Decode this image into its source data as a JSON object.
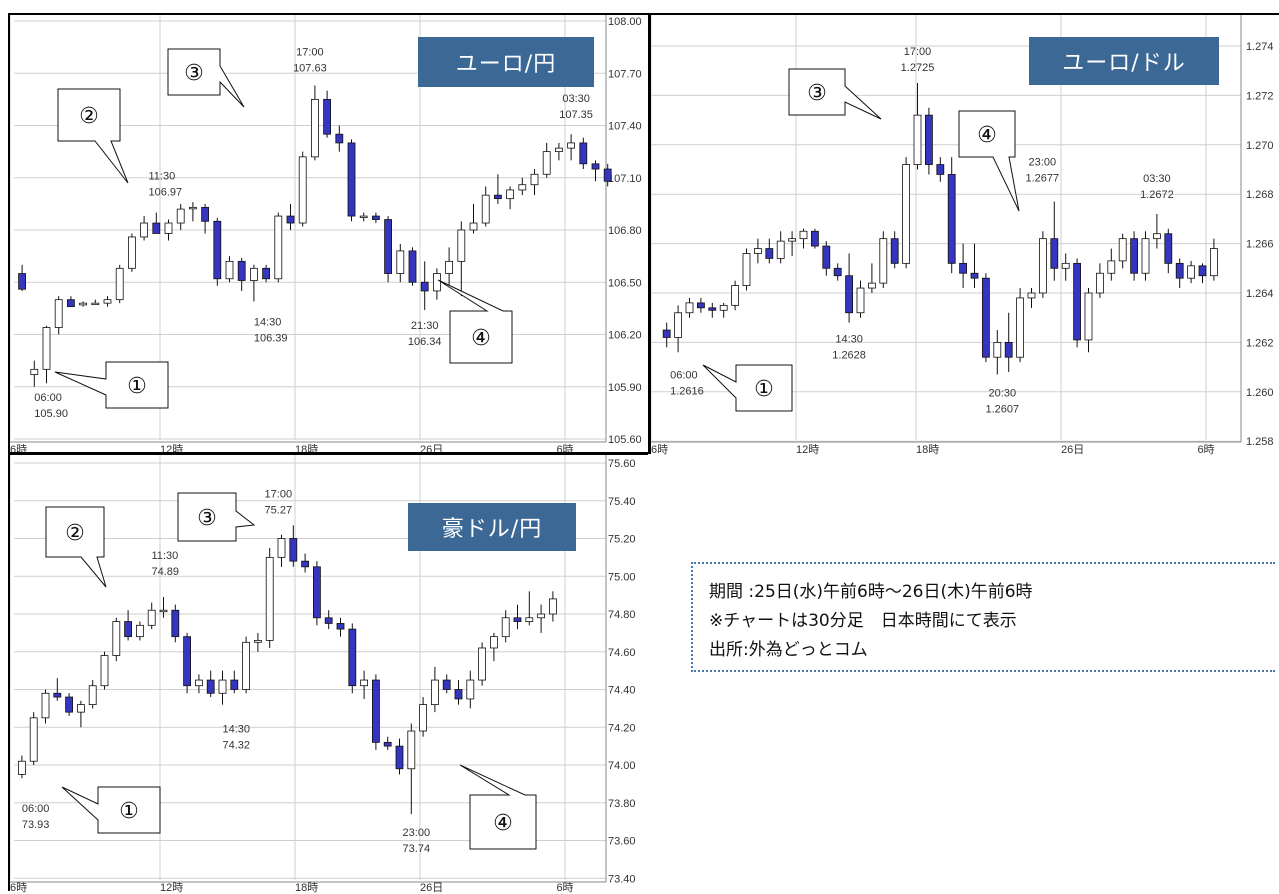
{
  "chart_data": [
    {
      "type": "candlestick",
      "title": "ユーロ/円",
      "y_ticks": [
        "108.00",
        "107.70",
        "107.40",
        "107.10",
        "106.80",
        "106.50",
        "106.20",
        "105.90",
        "105.60"
      ],
      "ylim": [
        105.6,
        108.0
      ],
      "x_ticks": [
        "6時",
        "12時",
        "18時",
        "26日",
        "6時"
      ],
      "grid": true,
      "callouts": [
        "①",
        "②",
        "③",
        "④"
      ],
      "annotations": [
        {
          "time": "06:00",
          "price": "105.90"
        },
        {
          "time": "11:30",
          "price": "106.97"
        },
        {
          "time": "14:30",
          "price": "106.39"
        },
        {
          "time": "17:00",
          "price": "107.63"
        },
        {
          "time": "21:30",
          "price": "106.34"
        },
        {
          "time": "03:30",
          "price": "107.35"
        }
      ],
      "candles": [
        [
          106.55,
          106.6,
          106.45,
          106.46
        ],
        [
          105.97,
          106.05,
          105.9,
          106.0
        ],
        [
          106.0,
          106.25,
          105.92,
          106.24
        ],
        [
          106.24,
          106.42,
          106.2,
          106.4
        ],
        [
          106.4,
          106.42,
          106.36,
          106.36
        ],
        [
          106.37,
          106.39,
          106.36,
          106.38
        ],
        [
          106.38,
          106.4,
          106.37,
          106.38
        ],
        [
          106.38,
          106.42,
          106.36,
          106.4
        ],
        [
          106.4,
          106.6,
          106.38,
          106.58
        ],
        [
          106.58,
          106.78,
          106.56,
          106.76
        ],
        [
          106.76,
          106.88,
          106.74,
          106.84
        ],
        [
          106.84,
          106.9,
          106.8,
          106.78
        ],
        [
          106.78,
          106.86,
          106.74,
          106.84
        ],
        [
          106.84,
          106.95,
          106.8,
          106.92
        ],
        [
          106.93,
          106.96,
          106.85,
          106.93
        ],
        [
          106.93,
          106.95,
          106.78,
          106.85
        ],
        [
          106.85,
          106.87,
          106.48,
          106.52
        ],
        [
          106.52,
          106.65,
          106.5,
          106.62
        ],
        [
          106.62,
          106.64,
          106.45,
          106.51
        ],
        [
          106.51,
          106.6,
          106.39,
          106.58
        ],
        [
          106.58,
          106.6,
          106.5,
          106.52
        ],
        [
          106.52,
          106.9,
          106.5,
          106.88
        ],
        [
          106.88,
          106.95,
          106.8,
          106.84
        ],
        [
          106.84,
          107.25,
          106.82,
          107.22
        ],
        [
          107.22,
          107.63,
          107.2,
          107.55
        ],
        [
          107.55,
          107.6,
          107.33,
          107.35
        ],
        [
          107.35,
          107.4,
          107.25,
          107.3
        ],
        [
          107.3,
          107.32,
          106.85,
          106.88
        ],
        [
          106.88,
          106.9,
          106.85,
          106.88
        ],
        [
          106.88,
          106.9,
          106.84,
          106.86
        ],
        [
          106.86,
          106.88,
          106.5,
          106.55
        ],
        [
          106.55,
          106.72,
          106.5,
          106.68
        ],
        [
          106.68,
          106.7,
          106.48,
          106.5
        ],
        [
          106.5,
          106.62,
          106.34,
          106.45
        ],
        [
          106.45,
          106.58,
          106.4,
          106.55
        ],
        [
          106.55,
          106.7,
          106.48,
          106.62
        ],
        [
          106.62,
          106.85,
          106.42,
          106.8
        ],
        [
          106.8,
          106.95,
          106.78,
          106.84
        ],
        [
          106.84,
          107.05,
          106.82,
          107.0
        ],
        [
          107.0,
          107.12,
          106.95,
          106.98
        ],
        [
          106.98,
          107.05,
          106.92,
          107.03
        ],
        [
          107.03,
          107.1,
          107.0,
          107.06
        ],
        [
          107.06,
          107.15,
          107.0,
          107.12
        ],
        [
          107.12,
          107.3,
          107.1,
          107.25
        ],
        [
          107.25,
          107.3,
          107.2,
          107.27
        ],
        [
          107.27,
          107.35,
          107.2,
          107.3
        ],
        [
          107.3,
          107.33,
          107.15,
          107.18
        ],
        [
          107.18,
          107.2,
          107.08,
          107.15
        ],
        [
          107.15,
          107.18,
          107.05,
          107.08
        ]
      ]
    },
    {
      "type": "candlestick",
      "title": "ユーロ/ドル",
      "y_ticks": [
        "1.274",
        "1.272",
        "1.270",
        "1.268",
        "1.266",
        "1.264",
        "1.262",
        "1.260",
        "1.258"
      ],
      "ylim": [
        1.258,
        1.274
      ],
      "x_ticks": [
        "6時",
        "12時",
        "18時",
        "26日",
        "6時"
      ],
      "grid": true,
      "callouts": [
        "①",
        "②",
        "③",
        "④"
      ],
      "annotations": [
        {
          "time": "06:00",
          "price": "1.2616"
        },
        {
          "time": "14:30",
          "price": "1.2628"
        },
        {
          "time": "17:00",
          "price": "1.2725"
        },
        {
          "time": "20:30",
          "price": "1.2607"
        },
        {
          "time": "23:00",
          "price": "1.2677"
        },
        {
          "time": "03:30",
          "price": "1.2672"
        }
      ],
      "candles": [
        [
          1.2625,
          1.2628,
          1.2618,
          1.2622
        ],
        [
          1.2622,
          1.2635,
          1.2616,
          1.2632
        ],
        [
          1.2632,
          1.2638,
          1.263,
          1.2636
        ],
        [
          1.2636,
          1.2638,
          1.2632,
          1.2634
        ],
        [
          1.2634,
          1.2636,
          1.263,
          1.2633
        ],
        [
          1.2633,
          1.2636,
          1.263,
          1.2635
        ],
        [
          1.2635,
          1.2645,
          1.2633,
          1.2643
        ],
        [
          1.2643,
          1.2658,
          1.2641,
          1.2656
        ],
        [
          1.2656,
          1.2662,
          1.2652,
          1.2658
        ],
        [
          1.2658,
          1.2662,
          1.2652,
          1.2654
        ],
        [
          1.2654,
          1.2665,
          1.2652,
          1.2661
        ],
        [
          1.2661,
          1.2665,
          1.2655,
          1.2662
        ],
        [
          1.2662,
          1.2666,
          1.2658,
          1.2665
        ],
        [
          1.2665,
          1.2666,
          1.2658,
          1.2659
        ],
        [
          1.2659,
          1.2661,
          1.2647,
          1.265
        ],
        [
          1.265,
          1.2652,
          1.2645,
          1.2647
        ],
        [
          1.2647,
          1.2656,
          1.2628,
          1.2632
        ],
        [
          1.2632,
          1.2645,
          1.263,
          1.2642
        ],
        [
          1.2642,
          1.2652,
          1.264,
          1.2644
        ],
        [
          1.2644,
          1.2665,
          1.2642,
          1.2662
        ],
        [
          1.2662,
          1.2665,
          1.265,
          1.2652
        ],
        [
          1.2652,
          1.2695,
          1.265,
          1.2692
        ],
        [
          1.2692,
          1.2725,
          1.269,
          1.2712
        ],
        [
          1.2712,
          1.2715,
          1.2688,
          1.2692
        ],
        [
          1.2692,
          1.2695,
          1.2685,
          1.2688
        ],
        [
          1.2688,
          1.2695,
          1.2648,
          1.2652
        ],
        [
          1.2652,
          1.266,
          1.2642,
          1.2648
        ],
        [
          1.2648,
          1.266,
          1.2642,
          1.2646
        ],
        [
          1.2646,
          1.2648,
          1.2612,
          1.2614
        ],
        [
          1.2614,
          1.2625,
          1.2607,
          1.262
        ],
        [
          1.262,
          1.2632,
          1.2608,
          1.2614
        ],
        [
          1.2614,
          1.2642,
          1.2612,
          1.2638
        ],
        [
          1.2638,
          1.2642,
          1.2634,
          1.264
        ],
        [
          1.264,
          1.2665,
          1.2638,
          1.2662
        ],
        [
          1.2662,
          1.2677,
          1.2645,
          1.265
        ],
        [
          1.265,
          1.2656,
          1.2645,
          1.2652
        ],
        [
          1.2652,
          1.2654,
          1.2618,
          1.2621
        ],
        [
          1.2621,
          1.2642,
          1.2616,
          1.264
        ],
        [
          1.264,
          1.2652,
          1.2638,
          1.2648
        ],
        [
          1.2648,
          1.2658,
          1.2645,
          1.2653
        ],
        [
          1.2653,
          1.2664,
          1.265,
          1.2662
        ],
        [
          1.2662,
          1.2665,
          1.2645,
          1.2648
        ],
        [
          1.2648,
          1.2665,
          1.2645,
          1.2662
        ],
        [
          1.2662,
          1.2672,
          1.2658,
          1.2664
        ],
        [
          1.2664,
          1.2666,
          1.2648,
          1.2652
        ],
        [
          1.2652,
          1.2654,
          1.2642,
          1.2646
        ],
        [
          1.2646,
          1.2653,
          1.2644,
          1.2651
        ],
        [
          1.2651,
          1.2652,
          1.2644,
          1.2647
        ],
        [
          1.2647,
          1.2662,
          1.2645,
          1.2658
        ]
      ]
    },
    {
      "type": "candlestick",
      "title": "豪ドル/円",
      "y_ticks": [
        "75.60",
        "75.40",
        "75.20",
        "75.00",
        "74.80",
        "74.60",
        "74.40",
        "74.20",
        "74.00",
        "73.80",
        "73.60",
        "73.40"
      ],
      "ylim": [
        73.4,
        75.6
      ],
      "x_ticks": [
        "6時",
        "12時",
        "18時",
        "26日",
        "6時"
      ],
      "grid": true,
      "callouts": [
        "①",
        "②",
        "③",
        "④"
      ],
      "annotations": [
        {
          "time": "06:00",
          "price": "73.93"
        },
        {
          "time": "11:30",
          "price": "74.89"
        },
        {
          "time": "14:30",
          "price": "74.32"
        },
        {
          "time": "17:00",
          "price": "75.27"
        },
        {
          "time": "23:00",
          "price": "73.74"
        }
      ],
      "candles": [
        [
          73.95,
          74.05,
          73.93,
          74.02
        ],
        [
          74.02,
          74.28,
          74.0,
          74.25
        ],
        [
          74.25,
          74.4,
          74.22,
          74.38
        ],
        [
          74.38,
          74.46,
          74.34,
          74.36
        ],
        [
          74.36,
          74.38,
          74.26,
          74.28
        ],
        [
          74.28,
          74.34,
          74.2,
          74.32
        ],
        [
          74.32,
          74.45,
          74.3,
          74.42
        ],
        [
          74.42,
          74.6,
          74.4,
          74.58
        ],
        [
          74.58,
          74.78,
          74.55,
          74.76
        ],
        [
          74.76,
          74.82,
          74.66,
          74.68
        ],
        [
          74.68,
          74.76,
          74.66,
          74.74
        ],
        [
          74.74,
          74.86,
          74.72,
          74.82
        ],
        [
          74.82,
          74.89,
          74.78,
          74.82
        ],
        [
          74.82,
          74.85,
          74.65,
          74.68
        ],
        [
          74.68,
          74.7,
          74.38,
          74.42
        ],
        [
          74.42,
          74.48,
          74.38,
          74.45
        ],
        [
          74.45,
          74.5,
          74.36,
          74.38
        ],
        [
          74.38,
          74.5,
          74.32,
          74.45
        ],
        [
          74.45,
          74.5,
          74.38,
          74.4
        ],
        [
          74.4,
          74.68,
          74.38,
          74.65
        ],
        [
          74.65,
          74.7,
          74.6,
          74.66
        ],
        [
          74.66,
          75.15,
          74.62,
          75.1
        ],
        [
          75.1,
          75.22,
          75.05,
          75.2
        ],
        [
          75.2,
          75.27,
          75.05,
          75.08
        ],
        [
          75.08,
          75.12,
          75.02,
          75.05
        ],
        [
          75.05,
          75.08,
          74.74,
          74.78
        ],
        [
          74.78,
          74.82,
          74.72,
          74.75
        ],
        [
          74.75,
          74.78,
          74.68,
          74.72
        ],
        [
          74.72,
          74.75,
          74.38,
          74.42
        ],
        [
          74.42,
          74.5,
          74.35,
          74.45
        ],
        [
          74.45,
          74.48,
          74.08,
          74.12
        ],
        [
          74.12,
          74.15,
          74.08,
          74.1
        ],
        [
          74.1,
          74.14,
          73.95,
          73.98
        ],
        [
          73.98,
          74.22,
          73.74,
          74.18
        ],
        [
          74.18,
          74.36,
          74.15,
          74.32
        ],
        [
          74.32,
          74.52,
          74.28,
          74.45
        ],
        [
          74.45,
          74.48,
          74.38,
          74.4
        ],
        [
          74.4,
          74.45,
          74.32,
          74.35
        ],
        [
          74.35,
          74.5,
          74.3,
          74.45
        ],
        [
          74.45,
          74.65,
          74.42,
          74.62
        ],
        [
          74.62,
          74.7,
          74.55,
          74.68
        ],
        [
          74.68,
          74.82,
          74.65,
          74.78
        ],
        [
          74.78,
          74.85,
          74.72,
          74.76
        ],
        [
          74.76,
          74.92,
          74.74,
          74.78
        ],
        [
          74.78,
          74.85,
          74.7,
          74.8
        ],
        [
          74.8,
          74.92,
          74.76,
          74.88
        ]
      ]
    }
  ],
  "info": {
    "line1": "期間 :25日(水)午前6時～26日(木)午前6時",
    "line2": "※チャートは30分足　日本時間にて表示",
    "line3": "出所:外為どっとコム"
  },
  "colors": {
    "bear": "#3535bd",
    "bull": "#ffffff",
    "badge": "#3c6896",
    "grid": "#cfcfcf"
  }
}
